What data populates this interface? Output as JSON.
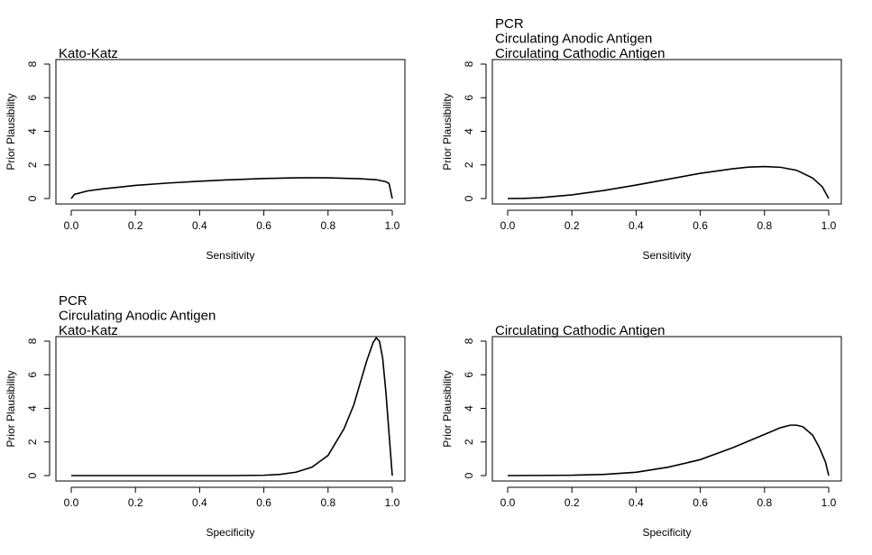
{
  "chart_data": [
    {
      "type": "line",
      "title_lines": [
        "Kato-Katz"
      ],
      "xlabel": "Sensitivity",
      "ylabel": "Prior Plausibility",
      "xlim": [
        0,
        1
      ],
      "ylim": [
        0,
        8
      ],
      "xticks": [
        "0.0",
        "0.2",
        "0.4",
        "0.6",
        "0.8",
        "1.0"
      ],
      "yticks": [
        "0",
        "2",
        "4",
        "6",
        "8"
      ],
      "x": [
        0.0,
        0.01,
        0.05,
        0.1,
        0.2,
        0.3,
        0.4,
        0.5,
        0.6,
        0.7,
        0.75,
        0.8,
        0.9,
        0.95,
        0.98,
        0.99,
        1.0
      ],
      "y": [
        0.0,
        0.25,
        0.45,
        0.58,
        0.78,
        0.92,
        1.03,
        1.12,
        1.19,
        1.23,
        1.24,
        1.23,
        1.18,
        1.12,
        1.0,
        0.9,
        0.0
      ]
    },
    {
      "type": "line",
      "title_lines": [
        "PCR",
        "Circulating Anodic Antigen",
        "Circulating Cathodic Antigen"
      ],
      "xlabel": "Sensitivity",
      "ylabel": "Prior Plausibility",
      "xlim": [
        0,
        1
      ],
      "ylim": [
        0,
        8
      ],
      "xticks": [
        "0.0",
        "0.2",
        "0.4",
        "0.6",
        "0.8",
        "1.0"
      ],
      "yticks": [
        "0",
        "2",
        "4",
        "6",
        "8"
      ],
      "x": [
        0.0,
        0.05,
        0.1,
        0.2,
        0.3,
        0.4,
        0.5,
        0.6,
        0.7,
        0.75,
        0.8,
        0.85,
        0.9,
        0.95,
        0.98,
        1.0
      ],
      "y": [
        0.0,
        0.01,
        0.05,
        0.22,
        0.48,
        0.8,
        1.15,
        1.5,
        1.77,
        1.87,
        1.9,
        1.86,
        1.68,
        1.22,
        0.7,
        0.0
      ]
    },
    {
      "type": "line",
      "title_lines": [
        "PCR",
        "Circulating Anodic Antigen",
        "Kato-Katz"
      ],
      "xlabel": "Specificity",
      "ylabel": "Prior Plausibility",
      "xlim": [
        0,
        1
      ],
      "ylim": [
        0,
        8
      ],
      "xticks": [
        "0.0",
        "0.2",
        "0.4",
        "0.6",
        "0.8",
        "1.0"
      ],
      "yticks": [
        "0",
        "2",
        "4",
        "6",
        "8"
      ],
      "x": [
        0.0,
        0.5,
        0.6,
        0.65,
        0.7,
        0.75,
        0.8,
        0.85,
        0.88,
        0.9,
        0.92,
        0.94,
        0.95,
        0.96,
        0.97,
        0.98,
        0.99,
        1.0
      ],
      "y": [
        0.0,
        0.0,
        0.02,
        0.07,
        0.2,
        0.5,
        1.2,
        2.8,
        4.2,
        5.5,
        6.8,
        7.9,
        8.2,
        8.0,
        7.0,
        5.0,
        2.5,
        0.0
      ]
    },
    {
      "type": "line",
      "title_lines": [
        "Circulating Cathodic Antigen"
      ],
      "xlabel": "Specificity",
      "ylabel": "Prior Plausibility",
      "xlim": [
        0,
        1
      ],
      "ylim": [
        0,
        8
      ],
      "xticks": [
        "0.0",
        "0.2",
        "0.4",
        "0.6",
        "0.8",
        "1.0"
      ],
      "yticks": [
        "0",
        "2",
        "4",
        "6",
        "8"
      ],
      "x": [
        0.0,
        0.2,
        0.3,
        0.4,
        0.5,
        0.6,
        0.7,
        0.8,
        0.85,
        0.88,
        0.9,
        0.92,
        0.95,
        0.97,
        0.99,
        1.0
      ],
      "y": [
        0.0,
        0.02,
        0.07,
        0.2,
        0.5,
        0.95,
        1.65,
        2.45,
        2.85,
        3.0,
        3.0,
        2.9,
        2.4,
        1.7,
        0.8,
        0.0
      ]
    }
  ]
}
